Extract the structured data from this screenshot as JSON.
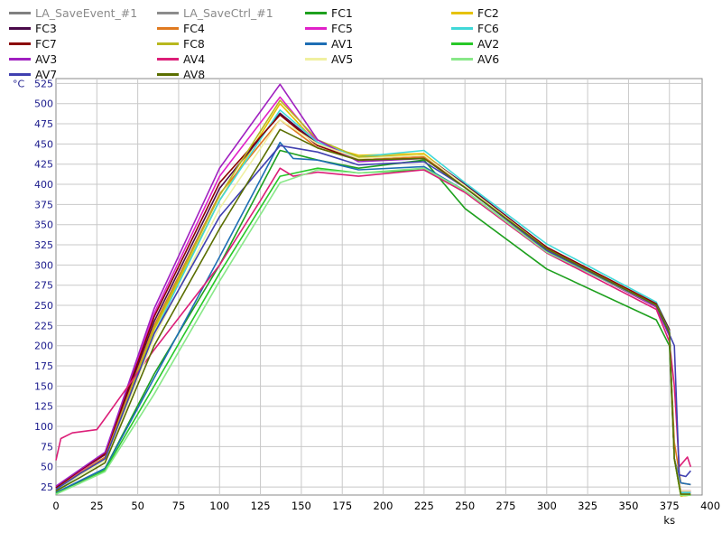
{
  "chart_data": {
    "type": "line",
    "title": "",
    "xlabel": "",
    "ylabel": "",
    "y_unit": "°C",
    "x_unit": "ks",
    "xlim": [
      0,
      395
    ],
    "ylim": [
      15,
      531
    ],
    "x_ticks": [
      0,
      25,
      50,
      75,
      100,
      125,
      150,
      175,
      200,
      225,
      250,
      275,
      300,
      325,
      350,
      375,
      400
    ],
    "y_ticks": [
      25,
      50,
      75,
      100,
      125,
      150,
      175,
      200,
      225,
      250,
      275,
      300,
      325,
      350,
      375,
      400,
      425,
      450,
      475,
      500,
      525
    ],
    "grid": true,
    "legend_position": "top",
    "series": [
      {
        "name": "LA_SaveEvent_#1",
        "color": "#808080",
        "points": []
      },
      {
        "name": "LA_SaveCtrl_#1",
        "color": "#8c8c8c",
        "points": []
      },
      {
        "name": "FC1",
        "color": "#1ea01e",
        "points": [
          [
            0,
            18
          ],
          [
            15,
            32
          ],
          [
            30,
            48
          ],
          [
            60,
            165
          ],
          [
            100,
            300
          ],
          [
            137,
            442
          ],
          [
            160,
            430
          ],
          [
            185,
            420
          ],
          [
            225,
            430
          ],
          [
            250,
            370
          ],
          [
            300,
            295
          ],
          [
            367,
            232
          ],
          [
            375,
            200
          ],
          [
            378,
            60
          ],
          [
            382,
            14
          ],
          [
            388,
            15
          ]
        ]
      },
      {
        "name": "FC2",
        "color": "#e6c200",
        "points": [
          [
            0,
            22
          ],
          [
            15,
            42
          ],
          [
            30,
            60
          ],
          [
            60,
            220
          ],
          [
            100,
            380
          ],
          [
            137,
            500
          ],
          [
            160,
            450
          ],
          [
            185,
            436
          ],
          [
            225,
            438
          ],
          [
            250,
            398
          ],
          [
            300,
            320
          ],
          [
            367,
            248
          ],
          [
            375,
            215
          ],
          [
            378,
            60
          ],
          [
            382,
            14
          ],
          [
            388,
            15
          ]
        ]
      },
      {
        "name": "FC3",
        "color": "#4a0a4a",
        "points": [
          [
            0,
            24
          ],
          [
            15,
            45
          ],
          [
            30,
            65
          ],
          [
            60,
            230
          ],
          [
            100,
            395
          ],
          [
            137,
            488
          ],
          [
            160,
            450
          ],
          [
            185,
            432
          ],
          [
            225,
            436
          ],
          [
            250,
            400
          ],
          [
            300,
            322
          ],
          [
            367,
            252
          ],
          [
            375,
            218
          ],
          [
            378,
            60
          ],
          [
            382,
            18
          ],
          [
            388,
            18
          ]
        ]
      },
      {
        "name": "FC4",
        "color": "#e07a20",
        "points": [
          [
            0,
            23
          ],
          [
            15,
            43
          ],
          [
            30,
            62
          ],
          [
            60,
            225
          ],
          [
            100,
            388
          ],
          [
            137,
            480
          ],
          [
            160,
            445
          ],
          [
            185,
            430
          ],
          [
            225,
            434
          ],
          [
            250,
            396
          ],
          [
            300,
            318
          ],
          [
            367,
            248
          ],
          [
            375,
            214
          ],
          [
            378,
            80
          ],
          [
            382,
            30
          ],
          [
            388,
            28
          ]
        ]
      },
      {
        "name": "FC5",
        "color": "#e020c8",
        "points": [
          [
            0,
            25
          ],
          [
            15,
            45
          ],
          [
            30,
            66
          ],
          [
            60,
            240
          ],
          [
            100,
            410
          ],
          [
            137,
            508
          ],
          [
            160,
            452
          ],
          [
            185,
            432
          ],
          [
            225,
            436
          ],
          [
            250,
            398
          ],
          [
            300,
            320
          ],
          [
            367,
            250
          ],
          [
            375,
            216
          ],
          [
            378,
            60
          ],
          [
            382,
            20
          ],
          [
            388,
            20
          ]
        ]
      },
      {
        "name": "FC6",
        "color": "#40d8d8",
        "points": [
          [
            0,
            21
          ],
          [
            15,
            40
          ],
          [
            30,
            58
          ],
          [
            60,
            215
          ],
          [
            100,
            380
          ],
          [
            137,
            492
          ],
          [
            160,
            452
          ],
          [
            185,
            434
          ],
          [
            225,
            442
          ],
          [
            250,
            402
          ],
          [
            300,
            326
          ],
          [
            367,
            254
          ],
          [
            375,
            220
          ],
          [
            378,
            60
          ],
          [
            382,
            18
          ],
          [
            388,
            18
          ]
        ]
      },
      {
        "name": "FC7",
        "color": "#8b0000",
        "points": [
          [
            0,
            24
          ],
          [
            15,
            46
          ],
          [
            30,
            66
          ],
          [
            60,
            236
          ],
          [
            100,
            402
          ],
          [
            137,
            486
          ],
          [
            160,
            448
          ],
          [
            185,
            430
          ],
          [
            225,
            432
          ],
          [
            250,
            398
          ],
          [
            300,
            322
          ],
          [
            367,
            252
          ],
          [
            375,
            220
          ],
          [
            378,
            60
          ],
          [
            382,
            20
          ],
          [
            388,
            20
          ]
        ]
      },
      {
        "name": "FC8",
        "color": "#b8b81e",
        "points": [
          [
            0,
            22
          ],
          [
            15,
            42
          ],
          [
            30,
            60
          ],
          [
            60,
            222
          ],
          [
            100,
            386
          ],
          [
            137,
            504
          ],
          [
            160,
            455
          ],
          [
            185,
            434
          ],
          [
            225,
            436
          ],
          [
            250,
            398
          ],
          [
            300,
            320
          ],
          [
            367,
            250
          ],
          [
            375,
            216
          ],
          [
            378,
            60
          ],
          [
            382,
            16
          ],
          [
            388,
            16
          ]
        ]
      },
      {
        "name": "AV1",
        "color": "#1e6eb4",
        "points": [
          [
            0,
            18
          ],
          [
            15,
            33
          ],
          [
            30,
            48
          ],
          [
            60,
            160
          ],
          [
            100,
            310
          ],
          [
            137,
            452
          ],
          [
            145,
            432
          ],
          [
            160,
            430
          ],
          [
            185,
            418
          ],
          [
            225,
            422
          ],
          [
            250,
            392
          ],
          [
            300,
            316
          ],
          [
            367,
            250
          ],
          [
            375,
            218
          ],
          [
            378,
            60
          ],
          [
            382,
            30
          ],
          [
            388,
            28
          ]
        ]
      },
      {
        "name": "AV2",
        "color": "#28c828",
        "points": [
          [
            0,
            17
          ],
          [
            15,
            30
          ],
          [
            30,
            46
          ],
          [
            60,
            150
          ],
          [
            100,
            290
          ],
          [
            137,
            410
          ],
          [
            160,
            420
          ],
          [
            185,
            414
          ],
          [
            225,
            418
          ],
          [
            250,
            392
          ],
          [
            300,
            316
          ],
          [
            367,
            250
          ],
          [
            375,
            216
          ],
          [
            378,
            60
          ],
          [
            382,
            15
          ],
          [
            388,
            15
          ]
        ]
      },
      {
        "name": "AV3",
        "color": "#a020c0",
        "points": [
          [
            0,
            26
          ],
          [
            15,
            47
          ],
          [
            30,
            68
          ],
          [
            60,
            246
          ],
          [
            100,
            420
          ],
          [
            137,
            524
          ],
          [
            160,
            455
          ],
          [
            185,
            428
          ],
          [
            225,
            432
          ],
          [
            250,
            396
          ],
          [
            300,
            318
          ],
          [
            367,
            248
          ],
          [
            375,
            212
          ],
          [
            378,
            60
          ],
          [
            382,
            20
          ],
          [
            388,
            20
          ]
        ]
      },
      {
        "name": "AV4",
        "color": "#dc1e78",
        "points": [
          [
            0,
            58
          ],
          [
            3,
            85
          ],
          [
            10,
            92
          ],
          [
            25,
            96
          ],
          [
            30,
            110
          ],
          [
            60,
            195
          ],
          [
            100,
            300
          ],
          [
            125,
            380
          ],
          [
            137,
            420
          ],
          [
            145,
            410
          ],
          [
            160,
            415
          ],
          [
            185,
            410
          ],
          [
            225,
            418
          ],
          [
            250,
            390
          ],
          [
            300,
            315
          ],
          [
            367,
            245
          ],
          [
            375,
            205
          ],
          [
            378,
            150
          ],
          [
            381,
            50
          ],
          [
            386,
            62
          ],
          [
            388,
            50
          ]
        ]
      },
      {
        "name": "AV5",
        "color": "#f0f0a0",
        "points": [
          [
            0,
            22
          ],
          [
            15,
            40
          ],
          [
            30,
            58
          ],
          [
            60,
            210
          ],
          [
            100,
            370
          ],
          [
            137,
            480
          ],
          [
            160,
            450
          ],
          [
            185,
            432
          ],
          [
            225,
            436
          ],
          [
            250,
            398
          ],
          [
            300,
            320
          ],
          [
            367,
            250
          ],
          [
            375,
            216
          ],
          [
            378,
            60
          ],
          [
            382,
            20
          ],
          [
            388,
            20
          ]
        ]
      },
      {
        "name": "AV6",
        "color": "#88e888",
        "points": [
          [
            0,
            16
          ],
          [
            15,
            30
          ],
          [
            30,
            44
          ],
          [
            60,
            140
          ],
          [
            100,
            280
          ],
          [
            137,
            402
          ],
          [
            160,
            418
          ],
          [
            185,
            414
          ],
          [
            225,
            420
          ],
          [
            250,
            392
          ],
          [
            300,
            316
          ],
          [
            367,
            250
          ],
          [
            375,
            216
          ],
          [
            378,
            60
          ],
          [
            382,
            15
          ],
          [
            388,
            15
          ]
        ]
      },
      {
        "name": "AV7",
        "color": "#4040b0",
        "points": [
          [
            0,
            22
          ],
          [
            15,
            42
          ],
          [
            30,
            60
          ],
          [
            60,
            215
          ],
          [
            100,
            360
          ],
          [
            137,
            448
          ],
          [
            160,
            440
          ],
          [
            185,
            424
          ],
          [
            225,
            428
          ],
          [
            250,
            396
          ],
          [
            300,
            318
          ],
          [
            367,
            250
          ],
          [
            375,
            214
          ],
          [
            378,
            200
          ],
          [
            381,
            40
          ],
          [
            385,
            38
          ],
          [
            388,
            45
          ]
        ]
      },
      {
        "name": "AV8",
        "color": "#5a6e00",
        "points": [
          [
            0,
            20
          ],
          [
            15,
            37
          ],
          [
            30,
            55
          ],
          [
            60,
            200
          ],
          [
            100,
            345
          ],
          [
            137,
            468
          ],
          [
            160,
            445
          ],
          [
            185,
            430
          ],
          [
            225,
            432
          ],
          [
            250,
            396
          ],
          [
            300,
            320
          ],
          [
            367,
            250
          ],
          [
            375,
            216
          ],
          [
            378,
            60
          ],
          [
            382,
            16
          ],
          [
            388,
            16
          ]
        ]
      }
    ]
  }
}
